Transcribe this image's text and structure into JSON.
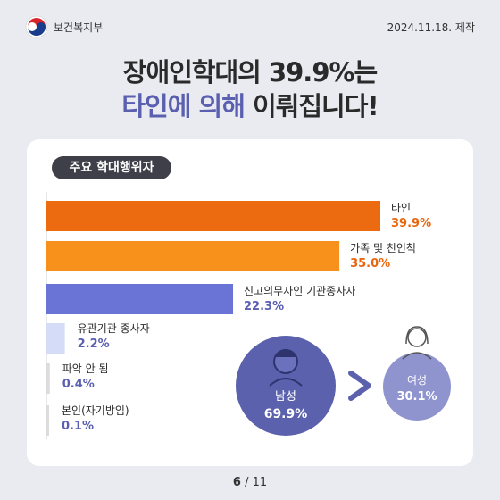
{
  "header": {
    "org_name": "보건복지부",
    "date_text": "2024.11.18. 제작"
  },
  "title": {
    "line1": "장애인학대의 39.9%는",
    "line2_highlight": "타인에 의해",
    "line2_rest": " 이뤄집니다!"
  },
  "chart_label": "주요 학대행위자",
  "chart_data": {
    "type": "bar",
    "orientation": "horizontal",
    "categories": [
      "타인",
      "가족 및 친인척",
      "신고의무자인 기관종사자",
      "유관기관 종사자",
      "파악 안 됨",
      "본인(자기방임)"
    ],
    "values": [
      39.9,
      35.0,
      22.3,
      2.2,
      0.4,
      0.1
    ],
    "value_labels": [
      "39.9%",
      "35.0%",
      "22.3%",
      "2.2%",
      "0.4%",
      "0.1%"
    ],
    "colors": [
      "#ec6a10",
      "#f8901c",
      "#6a73d6",
      "#d5dcf7",
      "#dcdcdc",
      "#dcdcdc"
    ],
    "value_colors": [
      "#e8660e",
      "#e8660e",
      "#5a5fb0",
      "#5a5fb0",
      "#5a5fb0",
      "#5a5fb0"
    ]
  },
  "gender": {
    "male_label": "남성",
    "male_value": "69.9%",
    "female_label": "여성",
    "female_value": "30.1%",
    "male_icon": "man-icon",
    "female_icon": "woman-icon",
    "arrow_icon": "chevron-right-icon",
    "male_color": "#5b61ad",
    "female_color": "#8f94cf"
  },
  "footer": {
    "current_page": "6",
    "total_pages": "/ 11"
  }
}
